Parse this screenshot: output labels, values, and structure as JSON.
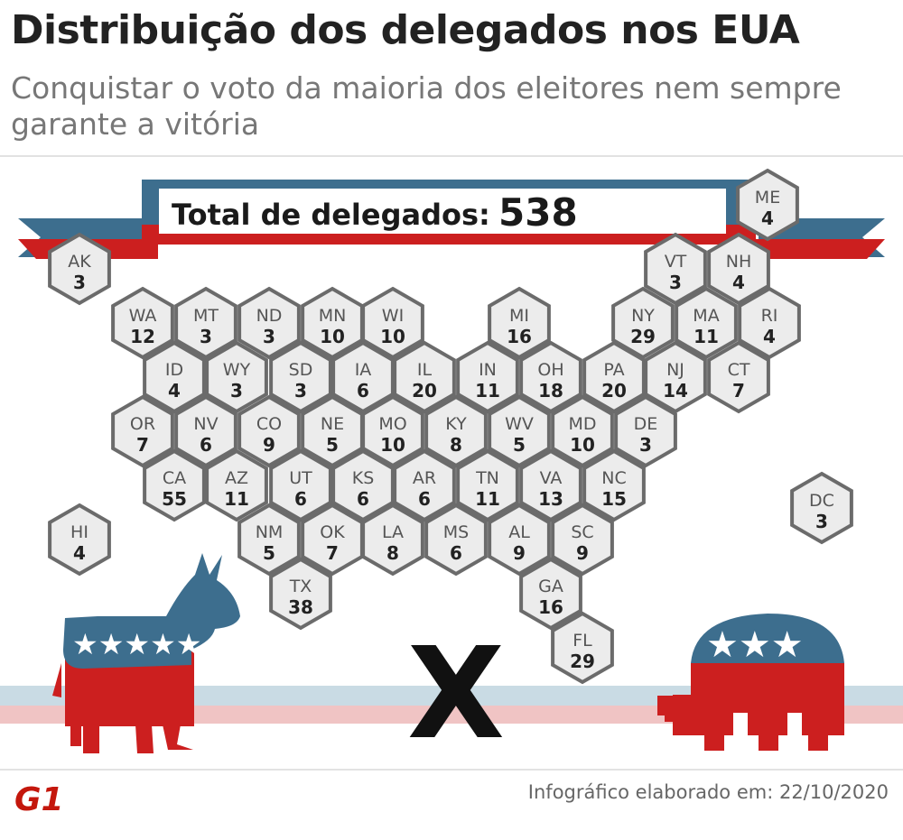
{
  "title": "Distribuição dos delegados nos EUA",
  "subtitle": "Conquistar o voto da maioria dos eleitores nem sempre garante a vitória",
  "banner": {
    "label": "Total de delegados:",
    "total": "538"
  },
  "versus": "X",
  "footer": {
    "logo": "G1",
    "credit": "Infográfico elaborado em: 22/10/2020"
  },
  "colors": {
    "democrat_blue": "#3d6e8e",
    "republican_red": "#cc1f1f",
    "hex_fill": "#ececec",
    "hex_stroke": "#6b6b6b"
  },
  "icons": {
    "democrat": "donkey-icon",
    "republican": "elephant-icon"
  },
  "states": [
    {
      "abbr": "ME",
      "votes": "4"
    },
    {
      "abbr": "AK",
      "votes": "3"
    },
    {
      "abbr": "VT",
      "votes": "3"
    },
    {
      "abbr": "NH",
      "votes": "4"
    },
    {
      "abbr": "WA",
      "votes": "12"
    },
    {
      "abbr": "MT",
      "votes": "3"
    },
    {
      "abbr": "ND",
      "votes": "3"
    },
    {
      "abbr": "MN",
      "votes": "10"
    },
    {
      "abbr": "WI",
      "votes": "10"
    },
    {
      "abbr": "MI",
      "votes": "16"
    },
    {
      "abbr": "NY",
      "votes": "29"
    },
    {
      "abbr": "MA",
      "votes": "11"
    },
    {
      "abbr": "RI",
      "votes": "4"
    },
    {
      "abbr": "ID",
      "votes": "4"
    },
    {
      "abbr": "WY",
      "votes": "3"
    },
    {
      "abbr": "SD",
      "votes": "3"
    },
    {
      "abbr": "IA",
      "votes": "6"
    },
    {
      "abbr": "IL",
      "votes": "20"
    },
    {
      "abbr": "IN",
      "votes": "11"
    },
    {
      "abbr": "OH",
      "votes": "18"
    },
    {
      "abbr": "PA",
      "votes": "20"
    },
    {
      "abbr": "NJ",
      "votes": "14"
    },
    {
      "abbr": "CT",
      "votes": "7"
    },
    {
      "abbr": "OR",
      "votes": "7"
    },
    {
      "abbr": "NV",
      "votes": "6"
    },
    {
      "abbr": "CO",
      "votes": "9"
    },
    {
      "abbr": "NE",
      "votes": "5"
    },
    {
      "abbr": "MO",
      "votes": "10"
    },
    {
      "abbr": "KY",
      "votes": "8"
    },
    {
      "abbr": "WV",
      "votes": "5"
    },
    {
      "abbr": "MD",
      "votes": "10"
    },
    {
      "abbr": "DE",
      "votes": "3"
    },
    {
      "abbr": "CA",
      "votes": "55"
    },
    {
      "abbr": "AZ",
      "votes": "11"
    },
    {
      "abbr": "UT",
      "votes": "6"
    },
    {
      "abbr": "KS",
      "votes": "6"
    },
    {
      "abbr": "AR",
      "votes": "6"
    },
    {
      "abbr": "TN",
      "votes": "11"
    },
    {
      "abbr": "VA",
      "votes": "13"
    },
    {
      "abbr": "NC",
      "votes": "15"
    },
    {
      "abbr": "DC",
      "votes": "3"
    },
    {
      "abbr": "HI",
      "votes": "4"
    },
    {
      "abbr": "NM",
      "votes": "5"
    },
    {
      "abbr": "OK",
      "votes": "7"
    },
    {
      "abbr": "LA",
      "votes": "8"
    },
    {
      "abbr": "MS",
      "votes": "6"
    },
    {
      "abbr": "AL",
      "votes": "9"
    },
    {
      "abbr": "SC",
      "votes": "9"
    },
    {
      "abbr": "TX",
      "votes": "38"
    },
    {
      "abbr": "GA",
      "votes": "16"
    },
    {
      "abbr": "FL",
      "votes": "29"
    }
  ]
}
